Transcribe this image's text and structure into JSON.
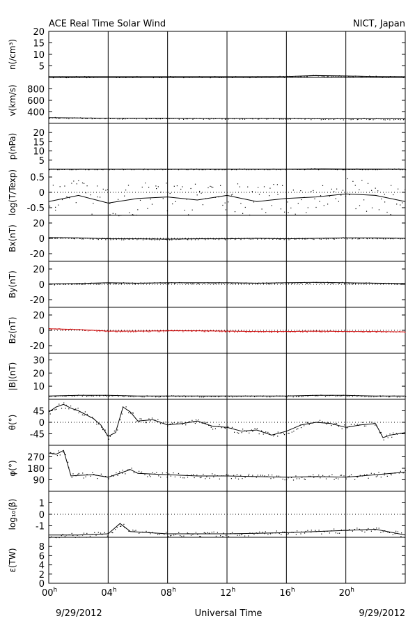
{
  "header": {
    "title": "ACE Real Time Solar Wind",
    "source": "NICT, Japan"
  },
  "footer": {
    "date_left": "9/29/2012",
    "xlabel": "Universal Time",
    "date_right": "9/29/2012"
  },
  "colors": {
    "frame": "#000000",
    "data": "#000000",
    "bz_data": "#cc0000",
    "zero_line": "#000000"
  },
  "chart_data": {
    "type": "scatter",
    "x_unit": "hours UT",
    "xlim": [
      0,
      24
    ],
    "x_ticks": [
      {
        "value": 0,
        "hour": "00",
        "sup": "h"
      },
      {
        "value": 4,
        "hour": "04",
        "sup": "h"
      },
      {
        "value": 8,
        "hour": "08",
        "sup": "h"
      },
      {
        "value": 12,
        "hour": "12",
        "sup": "h"
      },
      {
        "value": 16,
        "hour": "16",
        "sup": "h"
      },
      {
        "value": 20,
        "hour": "20",
        "sup": "h"
      }
    ],
    "vertical_gridlines_at": [
      4,
      8,
      12,
      16,
      20
    ],
    "panels": [
      {
        "id": "density",
        "ylabel": "n(/cm³)",
        "ylim": [
          0,
          20
        ],
        "yticks": [
          5,
          10,
          15,
          20
        ],
        "tick_labels": [
          "5",
          "10",
          "15",
          "20"
        ],
        "zero_line": false,
        "series": [
          {
            "x": [
              0,
              2,
              4,
              6,
              8,
              10,
              12,
              14,
              16,
              18,
              20,
              22,
              24
            ],
            "y": [
              0.3,
              0.3,
              0.3,
              0.3,
              0.3,
              0.3,
              0.3,
              0.3,
              0.4,
              0.8,
              0.6,
              0.4,
              0.3
            ]
          }
        ]
      },
      {
        "id": "speed",
        "ylabel": "v(km/s)",
        "ylim": [
          200,
          1000
        ],
        "yticks": [
          400,
          600,
          800
        ],
        "tick_labels": [
          "400",
          "600",
          "800"
        ],
        "zero_line": false,
        "series": [
          {
            "x": [
              0,
              2,
              4,
              6,
              8,
              10,
              12,
              14,
              16,
              18,
              20,
              22,
              24
            ],
            "y": [
              300,
              295,
              290,
              290,
              290,
              285,
              285,
              285,
              285,
              280,
              280,
              280,
              280
            ]
          }
        ]
      },
      {
        "id": "pressure",
        "ylabel": "p(nPa)",
        "ylim": [
          0,
          25
        ],
        "yticks": [
          5,
          10,
          15,
          20
        ],
        "tick_labels": [
          "5",
          "10",
          "15",
          "20"
        ],
        "zero_line": false,
        "series": [
          {
            "x": [
              0,
              4,
              8,
              12,
              16,
              18.5,
              20,
              22,
              24
            ],
            "y": [
              0.1,
              0.1,
              0.1,
              0.1,
              0.1,
              0.3,
              0.2,
              0.2,
              0.1
            ]
          }
        ]
      },
      {
        "id": "temperature",
        "ylabel": "log(T/Texp)",
        "ylim": [
          -0.75,
          0.75
        ],
        "yticks": [
          -0.5,
          0,
          0.5
        ],
        "tick_labels": [
          "-0.5",
          "0",
          "0.5"
        ],
        "zero_line": true,
        "series": [
          {
            "x": [
              0,
              2,
              4,
              6,
              8,
              10,
              12,
              14,
              16,
              18,
              20,
              22,
              24
            ],
            "y": [
              -0.3,
              -0.1,
              -0.35,
              -0.2,
              -0.15,
              -0.25,
              -0.1,
              -0.3,
              -0.2,
              -0.15,
              -0.05,
              -0.1,
              -0.3
            ]
          }
        ]
      },
      {
        "id": "bx",
        "ylabel": "Bx(nT)",
        "ylim": [
          -30,
          30
        ],
        "yticks": [
          -20,
          0,
          20
        ],
        "tick_labels": [
          "-20",
          "0",
          "20"
        ],
        "zero_line": true,
        "series": [
          {
            "x": [
              0,
              2,
              4,
              6,
              8,
              10,
              12,
              14,
              16,
              18,
              20,
              22,
              24
            ],
            "y": [
              1,
              0.5,
              -0.5,
              -0.5,
              -1,
              -0.5,
              -0.5,
              0,
              -0.5,
              0,
              0.5,
              0.5,
              0
            ]
          }
        ]
      },
      {
        "id": "by",
        "ylabel": "By(nT)",
        "ylim": [
          -30,
          30
        ],
        "yticks": [
          -20,
          0,
          20
        ],
        "tick_labels": [
          "-20",
          "0",
          "20"
        ],
        "zero_line": true,
        "series": [
          {
            "x": [
              0,
              2,
              4,
              6,
              8,
              10,
              12,
              14,
              16,
              18,
              20,
              22,
              24
            ],
            "y": [
              0.5,
              1,
              2,
              1.5,
              2,
              2,
              2,
              1.5,
              2,
              2.5,
              2,
              1.5,
              1
            ]
          }
        ]
      },
      {
        "id": "bz",
        "ylabel": "Bz(nT)",
        "ylim": [
          -30,
          30
        ],
        "yticks": [
          -20,
          0,
          20
        ],
        "tick_labels": [
          "-20",
          "0",
          "20"
        ],
        "zero_line": true,
        "red": true,
        "series": [
          {
            "x": [
              0,
              2,
              4,
              6,
              8,
              10,
              12,
              14,
              16,
              18,
              20,
              22,
              24
            ],
            "y": [
              2,
              1,
              -1,
              -1,
              -0.5,
              -0.5,
              -1,
              -1.5,
              -1.5,
              -1,
              -1.5,
              -1.5,
              -2
            ]
          }
        ]
      },
      {
        "id": "btotal",
        "ylabel": "|B|(nT)",
        "ylim": [
          0,
          35
        ],
        "yticks": [
          10,
          20,
          30
        ],
        "tick_labels": [
          "10",
          "20",
          "30"
        ],
        "zero_line": false,
        "series": [
          {
            "x": [
              0,
              2,
              4,
              6,
              8,
              10,
              12,
              14,
              16,
              18,
              20,
              22,
              24
            ],
            "y": [
              2.5,
              3,
              3,
              2.5,
              2.5,
              2.5,
              2.5,
              2.5,
              2.5,
              3,
              3,
              2.5,
              2.5
            ]
          }
        ]
      },
      {
        "id": "theta",
        "ylabel": "θ(°)",
        "ylim": [
          -90,
          90
        ],
        "yticks": [
          -45,
          0,
          45
        ],
        "tick_labels": [
          "-45",
          "0",
          "45"
        ],
        "zero_line": true,
        "series": [
          {
            "x": [
              0,
              0.5,
              1,
              1.5,
              2,
              2.5,
              3,
              3.5,
              4,
              4.5,
              5,
              5.5,
              6,
              7,
              8,
              9,
              10,
              11,
              12,
              13,
              14,
              15,
              16,
              17,
              18,
              19,
              20,
              21,
              22,
              22.5,
              23,
              24
            ],
            "y": [
              40,
              60,
              70,
              55,
              45,
              30,
              15,
              -10,
              -55,
              -40,
              60,
              40,
              5,
              10,
              -10,
              -5,
              5,
              -15,
              -20,
              -35,
              -30,
              -50,
              -35,
              -10,
              0,
              -5,
              -20,
              -10,
              -5,
              -60,
              -50,
              -40
            ]
          }
        ]
      },
      {
        "id": "phi",
        "ylabel": "φ(°)",
        "ylim": [
          0,
          360
        ],
        "yticks": [
          90,
          180,
          270
        ],
        "tick_labels": [
          "90",
          "180",
          "270"
        ],
        "zero_line": false,
        "series": [
          {
            "x": [
              0,
              0.5,
              1,
              1.5,
              2,
              3,
              4,
              5,
              5.5,
              6,
              8,
              10,
              12,
              14,
              16,
              18,
              20,
              22,
              24
            ],
            "y": [
              300,
              290,
              320,
              120,
              125,
              130,
              110,
              150,
              170,
              140,
              130,
              120,
              120,
              115,
              110,
              115,
              110,
              130,
              150
            ]
          }
        ]
      },
      {
        "id": "beta",
        "ylabel": "log₁₀(β)",
        "ylim": [
          -2,
          2
        ],
        "yticks": [
          -1,
          0,
          1
        ],
        "tick_labels": [
          "-1",
          "0",
          "1"
        ],
        "zero_line": true,
        "series": [
          {
            "x": [
              0,
              2,
              4,
              4.8,
              5.5,
              8,
              12,
              16,
              18,
              20,
              22,
              24
            ],
            "y": [
              -1.8,
              -1.8,
              -1.7,
              -0.8,
              -1.5,
              -1.7,
              -1.7,
              -1.6,
              -1.5,
              -1.4,
              -1.3,
              -1.8
            ]
          }
        ]
      },
      {
        "id": "epsilon",
        "ylabel": "ε(TW)",
        "ylim": [
          0,
          10
        ],
        "yticks": [
          0,
          2,
          4,
          6,
          8
        ],
        "tick_labels": [
          "0",
          "2",
          "4",
          "6",
          "8"
        ],
        "zero_line": false,
        "series": []
      }
    ]
  }
}
